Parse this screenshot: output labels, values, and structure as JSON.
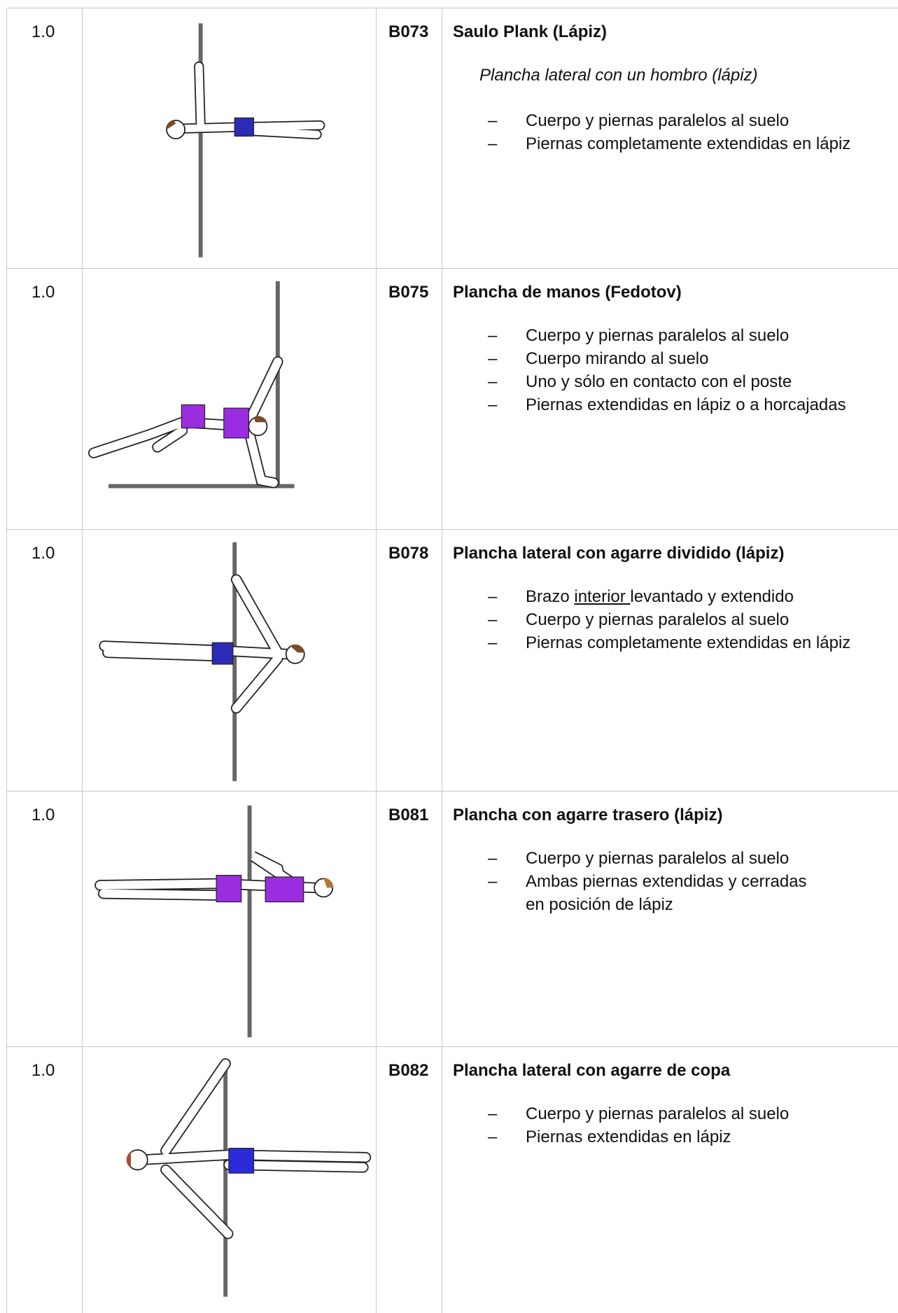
{
  "bullet_marker": "–",
  "rows": [
    {
      "score": "1.0",
      "code": "B073",
      "title": "Saulo Plank (Lápiz)",
      "subtitle": "Plancha lateral con un hombro (lápiz)",
      "bullets": [
        "Cuerpo y piernas paralelos al suelo",
        "Piernas completamente extendidas en lápiz"
      ]
    },
    {
      "score": "1.0",
      "code": "B075",
      "title": "Plancha de manos (Fedotov)",
      "bullets": [
        "Cuerpo y piernas paralelos al suelo",
        "Cuerpo mirando al suelo",
        "Uno y sólo en contacto con el poste",
        "Piernas extendidas en lápiz o a horcajadas"
      ]
    },
    {
      "score": "1.0",
      "code": "B078",
      "title": "Plancha lateral con agarre dividido (lápiz)",
      "bullets": [
        {
          "segments": [
            {
              "text": "Brazo "
            },
            {
              "text": "interior ",
              "underline": true
            },
            {
              "text": "levantado y extendido"
            }
          ]
        },
        "Cuerpo y piernas paralelos al suelo",
        "Piernas completamente extendidas en lápiz"
      ]
    },
    {
      "score": "1.0",
      "code": "B081",
      "title": "Plancha con agarre trasero (lápiz)",
      "bullets": [
        "Cuerpo y piernas paralelos al suelo",
        {
          "lines": [
            "Ambas piernas extendidas y cerradas",
            "en posición de lápiz"
          ]
        }
      ]
    },
    {
      "score": "1.0",
      "code": "B082",
      "title": "Plancha lateral con agarre de copa",
      "bullets": [
        "Cuerpo y piernas paralelos al suelo",
        "Piernas extendidas en lápiz"
      ]
    }
  ]
}
